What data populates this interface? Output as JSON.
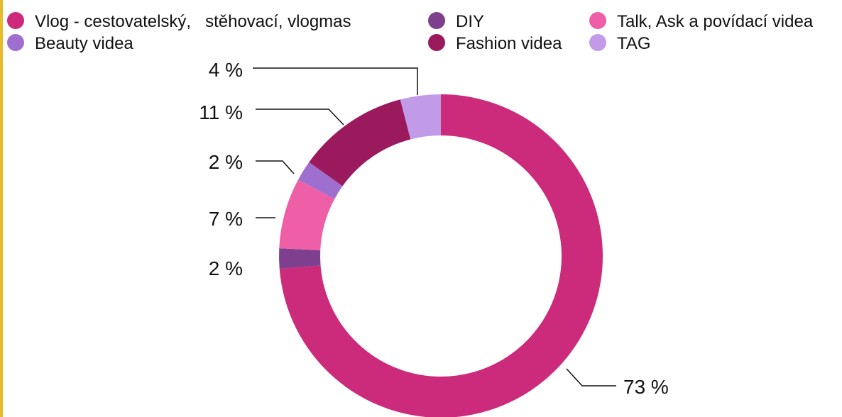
{
  "chart_data": {
    "type": "pie",
    "variant": "donut",
    "title": "",
    "categories": [
      "Vlog - cestovatelský,   stěhovací, vlogmas",
      "DIY",
      "Talk, Ask a povídací videa",
      "Beauty videa",
      "Fashion videa",
      "TAG"
    ],
    "values": [
      73,
      2,
      7,
      2,
      11,
      4
    ],
    "labels": [
      "73 %",
      "2 %",
      "7 %",
      "2 %",
      "11 %",
      "4 %"
    ],
    "colors": [
      "#cc2a7a",
      "#7e3f8e",
      "#ee5fa7",
      "#9f6fd0",
      "#9b1a5e",
      "#c19be8"
    ],
    "legend_position": "top"
  },
  "colors": {
    "accent_bar": "#e9bb2a"
  }
}
